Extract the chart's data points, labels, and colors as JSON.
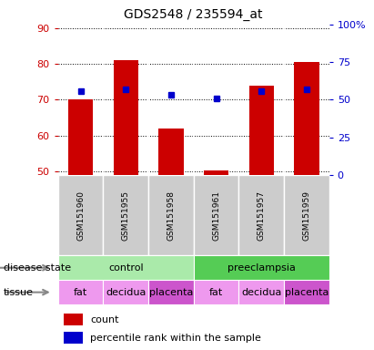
{
  "title": "GDS2548 / 235594_at",
  "samples": [
    "GSM151960",
    "GSM151955",
    "GSM151958",
    "GSM151961",
    "GSM151957",
    "GSM151959"
  ],
  "bar_values": [
    70.0,
    81.0,
    62.0,
    50.3,
    74.0,
    80.5
  ],
  "percentile_values": [
    56,
    57,
    53,
    51,
    56,
    57
  ],
  "bar_color": "#cc0000",
  "percentile_color": "#0000cc",
  "ylim_left": [
    49,
    91
  ],
  "ylim_right": [
    0,
    100
  ],
  "yticks_left": [
    50,
    60,
    70,
    80,
    90
  ],
  "yticks_right": [
    0,
    25,
    50,
    75,
    100
  ],
  "yticklabels_right": [
    "0",
    "25",
    "50",
    "75",
    "100%"
  ],
  "disease_state": [
    {
      "label": "control",
      "span": [
        0,
        3
      ],
      "color": "#aaeaaa"
    },
    {
      "label": "preeclampsia",
      "span": [
        3,
        6
      ],
      "color": "#55cc55"
    }
  ],
  "tissue": [
    {
      "label": "fat",
      "span": [
        0,
        1
      ],
      "color": "#ee99ee"
    },
    {
      "label": "decidua",
      "span": [
        1,
        2
      ],
      "color": "#ee99ee"
    },
    {
      "label": "placenta",
      "span": [
        2,
        3
      ],
      "color": "#cc55cc"
    },
    {
      "label": "fat",
      "span": [
        3,
        4
      ],
      "color": "#ee99ee"
    },
    {
      "label": "decidua",
      "span": [
        4,
        5
      ],
      "color": "#ee99ee"
    },
    {
      "label": "placenta",
      "span": [
        5,
        6
      ],
      "color": "#cc55cc"
    }
  ],
  "disease_state_label": "disease state",
  "tissue_label": "tissue",
  "legend_count": "count",
  "legend_percentile": "percentile rank within the sample",
  "bg_color": "#ffffff",
  "plot_bg_color": "#ffffff",
  "sample_label_bg": "#cccccc",
  "grid_color": "#000000",
  "left_tick_color": "#cc0000",
  "right_tick_color": "#0000cc"
}
